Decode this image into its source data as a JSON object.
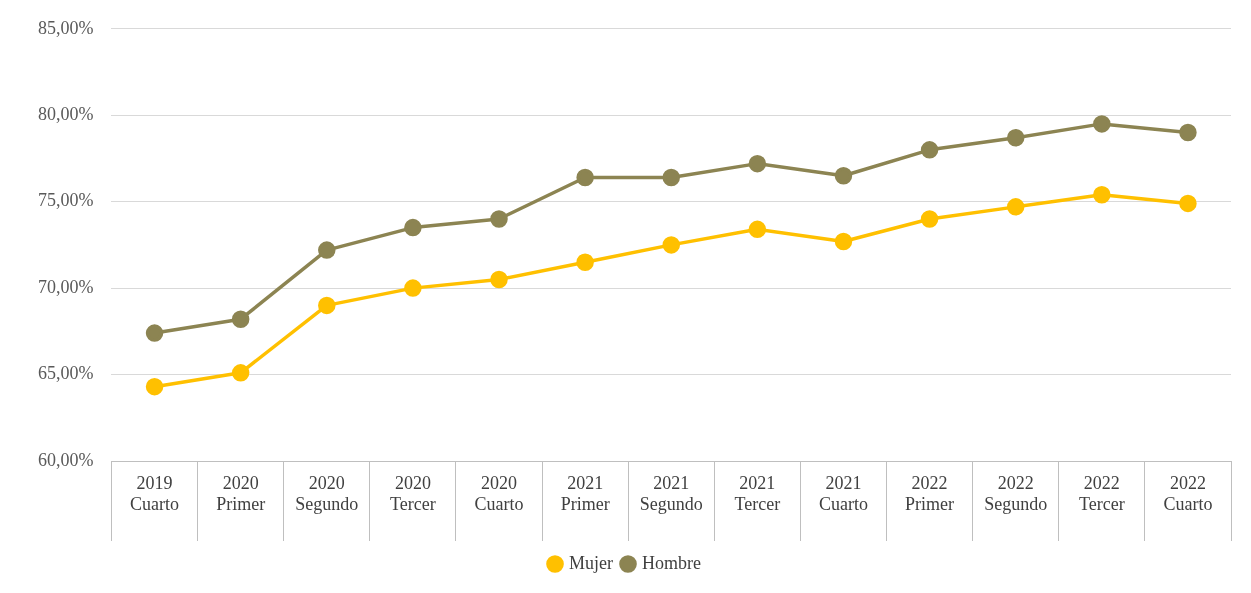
{
  "chart_data": {
    "type": "line",
    "categories": [
      "2019 Cuarto",
      "2020 Primer",
      "2020 Segundo",
      "2020 Tercer",
      "2020 Cuarto",
      "2021 Primer",
      "2021 Segundo",
      "2021 Tercer",
      "2021 Cuarto",
      "2022 Primer",
      "2022 Segundo",
      "2022 Tercer",
      "2022 Cuarto"
    ],
    "series": [
      {
        "name": "Mujer",
        "color": "#ffc000",
        "values": [
          64.3,
          65.1,
          69.0,
          70.0,
          70.5,
          71.5,
          72.5,
          73.4,
          72.7,
          74.0,
          74.7,
          75.4,
          74.9
        ]
      },
      {
        "name": "Hombre",
        "color": "#8c8452",
        "values": [
          67.4,
          68.2,
          72.2,
          73.5,
          74.0,
          76.4,
          76.4,
          77.2,
          76.5,
          78.0,
          78.7,
          79.5,
          79.0
        ]
      }
    ],
    "ylim": [
      60,
      85
    ],
    "yticks": [
      {
        "value": 60,
        "label": "60,00%"
      },
      {
        "value": 65,
        "label": "65,00%"
      },
      {
        "value": 70,
        "label": "70,00%"
      },
      {
        "value": 75,
        "label": "75,00%"
      },
      {
        "value": 80,
        "label": "80,00%"
      },
      {
        "value": 85,
        "label": "85,00%"
      }
    ],
    "grid": "y",
    "legend": "bottom",
    "marker": "circle",
    "line_style": "solid"
  }
}
